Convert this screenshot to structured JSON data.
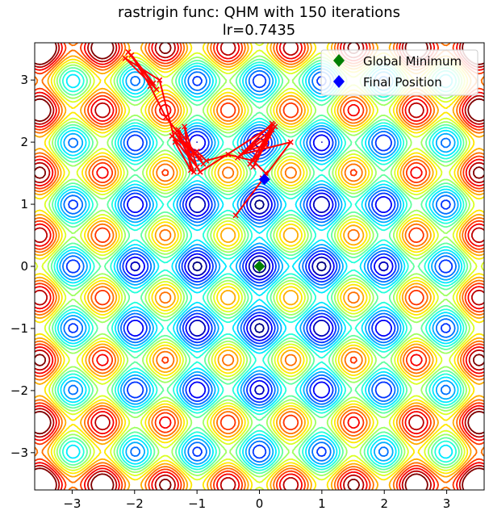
{
  "chart_data": {
    "type": "contour",
    "title": "rastrigin func: QHM with 150 iterations",
    "subtitle": "lr=0.7435",
    "function": "rastrigin",
    "xlim": [
      -3.6,
      3.6
    ],
    "ylim": [
      -3.6,
      3.6
    ],
    "xticks": [
      -3,
      -2,
      -1,
      0,
      1,
      2,
      3
    ],
    "yticks": [
      -3,
      -2,
      -1,
      0,
      1,
      2,
      3
    ],
    "xtick_labels": [
      "−3",
      "−2",
      "−1",
      "0",
      "1",
      "2",
      "3"
    ],
    "ytick_labels": [
      "−3",
      "−2",
      "−1",
      "0",
      "1",
      "2",
      "3"
    ],
    "contour_levels": [
      2,
      5,
      8,
      11,
      14,
      17,
      20,
      23,
      26,
      29,
      32,
      35,
      38,
      41,
      44,
      47,
      50,
      53
    ],
    "colormap": "jet",
    "grid": false,
    "legend_position": "top-right",
    "legend": [
      {
        "label": "Global Minimum",
        "color": "#008000",
        "marker": "diamond"
      },
      {
        "label": "Final Position",
        "color": "#0000ff",
        "marker": "diamond"
      }
    ],
    "global_minimum": {
      "x": 0,
      "y": 0
    },
    "final_position": {
      "x": 0.08,
      "y": 1.4
    },
    "path_color": "#ff0000",
    "path": [
      [
        -0.38,
        0.82
      ],
      [
        0.5,
        2.0
      ],
      [
        -0.3,
        1.8
      ],
      [
        0.2,
        2.3
      ],
      [
        -0.1,
        1.6
      ],
      [
        0.25,
        2.25
      ],
      [
        -0.35,
        1.75
      ],
      [
        0.15,
        2.1
      ],
      [
        -0.05,
        1.75
      ],
      [
        0.2,
        2.2
      ],
      [
        -0.25,
        1.85
      ],
      [
        0.1,
        1.95
      ],
      [
        -0.15,
        1.65
      ],
      [
        0.22,
        2.28
      ],
      [
        -0.95,
        1.52
      ],
      [
        -1.35,
        2.15
      ],
      [
        -0.9,
        1.65
      ],
      [
        -1.3,
        2.2
      ],
      [
        -1.05,
        1.52
      ],
      [
        -1.25,
        2.05
      ],
      [
        -0.95,
        1.75
      ],
      [
        -1.4,
        2.1
      ],
      [
        -1.0,
        1.6
      ],
      [
        -1.2,
        2.25
      ],
      [
        -1.1,
        1.55
      ],
      [
        -1.35,
        2.0
      ],
      [
        -1.6,
        3.0
      ],
      [
        -2.15,
        3.35
      ],
      [
        -1.65,
        2.85
      ],
      [
        -2.1,
        3.45
      ],
      [
        -1.7,
        2.95
      ],
      [
        -2.05,
        3.4
      ],
      [
        -1.75,
        2.9
      ],
      [
        -1.5,
        2.4
      ],
      [
        -1.3,
        2.15
      ],
      [
        -1.1,
        1.8
      ],
      [
        -1.0,
        1.85
      ],
      [
        -0.85,
        1.7
      ],
      [
        -0.5,
        1.8
      ],
      [
        -0.1,
        1.7
      ],
      [
        0.1,
        1.5
      ],
      [
        0.05,
        1.42
      ]
    ]
  }
}
